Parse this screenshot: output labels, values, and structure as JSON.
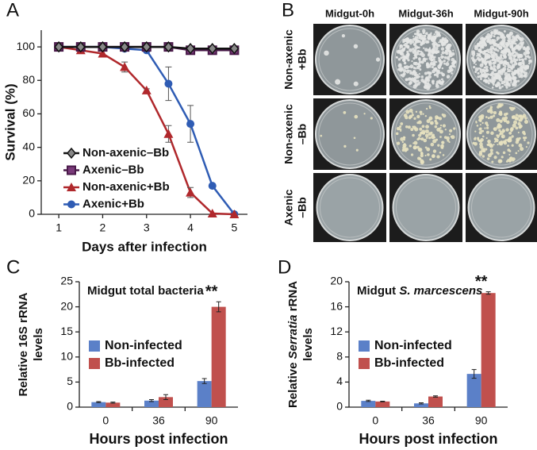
{
  "chart_data": [
    {
      "type": "line",
      "panel": "A",
      "xlabel": "Days after infection",
      "ylabel": "Survival (%)",
      "x": [
        1,
        1.5,
        2,
        2.5,
        3,
        3.5,
        4,
        4.5,
        5
      ],
      "xlim": [
        0.6,
        5.3
      ],
      "xticks": [
        1,
        2,
        3,
        4,
        5
      ],
      "ylim": [
        0,
        110
      ],
      "yticks": [
        0,
        20,
        40,
        60,
        80,
        100
      ],
      "series": [
        {
          "name": "Non-axenic–Bb",
          "color": "#111111",
          "marker": "diamond",
          "values": [
            100,
            100,
            100,
            100,
            100,
            100,
            99,
            99,
            99
          ],
          "errors": [
            0,
            0,
            0,
            0,
            0,
            0,
            0,
            0,
            0
          ]
        },
        {
          "name": "Axenic–Bb",
          "color": "#4a1a4a",
          "marker": "square",
          "values": [
            100,
            100,
            100,
            100,
            100,
            100,
            98,
            98,
            98
          ],
          "errors": [
            0,
            0,
            0,
            0,
            0,
            0,
            0,
            0,
            0
          ]
        },
        {
          "name": "Non-axenic+Bb",
          "color": "#b0282c",
          "marker": "triangle",
          "values": [
            100,
            98,
            96,
            88,
            74,
            48,
            13,
            0.5,
            0
          ],
          "errors": [
            0,
            1,
            2,
            3,
            1,
            5,
            3,
            0,
            0
          ]
        },
        {
          "name": "Axenic+Bb",
          "color": "#2f5cb4",
          "marker": "circle",
          "values": [
            100,
            100,
            100,
            99,
            98,
            78,
            54,
            17,
            0
          ],
          "errors": [
            0,
            0,
            0,
            1,
            1,
            10,
            11,
            0,
            0
          ]
        }
      ]
    },
    {
      "type": "bar",
      "panel": "C",
      "title": [
        {
          "text": "Midgut total bacteria"
        }
      ],
      "ylabel": [
        [
          {
            "text": "Relative 16S rRNA"
          }
        ],
        [
          {
            "text": "levels"
          }
        ]
      ],
      "xlabel": "Hours post infection",
      "categories": [
        "0",
        "36",
        "90"
      ],
      "ylim": [
        0,
        25
      ],
      "yticks": [
        0,
        5,
        10,
        15,
        20,
        25
      ],
      "significance": [
        null,
        null,
        "**"
      ],
      "series": [
        {
          "name": "Non-infected",
          "color": "#5b80c8",
          "values": [
            1.0,
            1.3,
            5.2
          ],
          "errors": [
            0.1,
            0.2,
            0.5
          ]
        },
        {
          "name": "Bb-infected",
          "color": "#c0504d",
          "values": [
            0.9,
            2.0,
            20.0
          ],
          "errors": [
            0.1,
            0.5,
            1.0
          ]
        }
      ]
    },
    {
      "type": "bar",
      "panel": "D",
      "title": [
        {
          "text": "Midgut "
        },
        {
          "text": "S. marcescens",
          "italic": true
        }
      ],
      "ylabel": [
        [
          {
            "text": "Relative "
          },
          {
            "text": "Serratia",
            "italic": true
          },
          {
            "text": " rRNA"
          }
        ],
        [
          {
            "text": "levels"
          }
        ]
      ],
      "xlabel": "Hours post infection",
      "categories": [
        "0",
        "36",
        "90"
      ],
      "ylim": [
        0,
        20
      ],
      "yticks": [
        0,
        4,
        8,
        12,
        16,
        20
      ],
      "significance": [
        null,
        null,
        "**"
      ],
      "series": [
        {
          "name": "Non-infected",
          "color": "#5b80c8",
          "values": [
            1.0,
            0.6,
            5.3
          ],
          "errors": [
            0.1,
            0.1,
            0.7
          ]
        },
        {
          "name": "Bb-infected",
          "color": "#c0504d",
          "values": [
            0.9,
            1.7,
            18.2
          ],
          "errors": [
            0.05,
            0.1,
            0.2
          ]
        }
      ]
    }
  ],
  "panel_b": {
    "panel": "B",
    "columns": [
      "Midgut-0h",
      "Midgut-36h",
      "Midgut-90h"
    ],
    "rows": [
      [
        "Non-axenic",
        "+Bb"
      ],
      [
        "Non-axenic",
        "–Bb"
      ],
      [
        "Axenic",
        "–Bb"
      ]
    ]
  }
}
